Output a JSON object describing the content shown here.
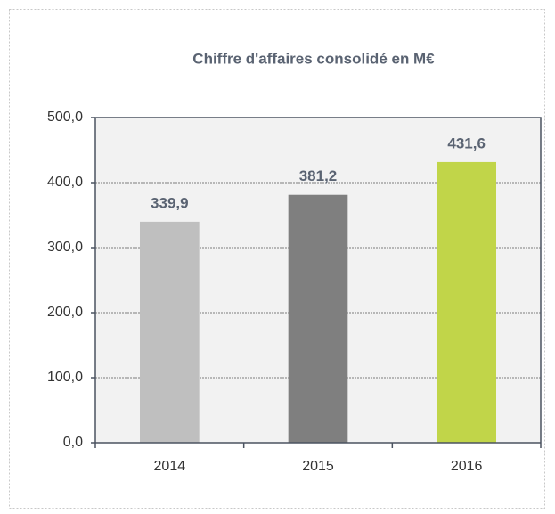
{
  "chart_data": {
    "type": "bar",
    "title": "Chiffre d'affaires consolidé en M€",
    "categories": [
      "2014",
      "2015",
      "2016"
    ],
    "values": [
      339.9,
      381.2,
      431.6
    ],
    "value_labels": [
      "339,9",
      "381,2",
      "431,6"
    ],
    "colors": [
      "#bfbfbf",
      "#7f7f7f",
      "#c1d549"
    ],
    "ylim": [
      0,
      500
    ],
    "yticks": [
      {
        "value": 0,
        "label": "0,0"
      },
      {
        "value": 100,
        "label": "100,0"
      },
      {
        "value": 200,
        "label": "200,0"
      },
      {
        "value": 300,
        "label": "300,0"
      },
      {
        "value": 400,
        "label": "400,0"
      },
      {
        "value": 500,
        "label": "500,0"
      }
    ],
    "grid": true
  }
}
